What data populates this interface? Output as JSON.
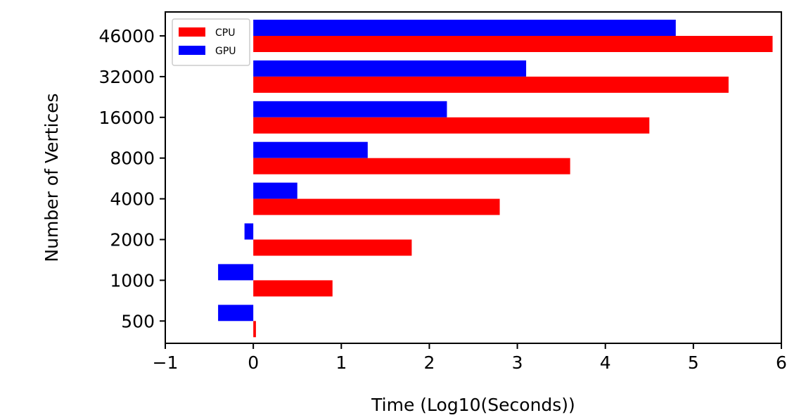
{
  "chart_data": {
    "type": "bar",
    "orientation": "horizontal",
    "categories": [
      "500",
      "1000",
      "2000",
      "4000",
      "8000",
      "16000",
      "32000",
      "46000"
    ],
    "series": [
      {
        "name": "CPU",
        "color": "#ff0000",
        "values": [
          0.03,
          0.9,
          1.8,
          2.8,
          3.6,
          4.5,
          5.4,
          5.9
        ]
      },
      {
        "name": "GPU",
        "color": "#0000ff",
        "values": [
          -0.4,
          -0.4,
          -0.1,
          0.5,
          1.3,
          2.2,
          3.1,
          4.8
        ]
      }
    ],
    "xlabel": "Time (Log10(Seconds))",
    "ylabel": "Number of Vertices",
    "xlim": [
      -1,
      6
    ],
    "xticks": [
      "−1",
      "0",
      "1",
      "2",
      "3",
      "4",
      "5",
      "6"
    ],
    "grid": false,
    "legend_position": "top-left"
  }
}
